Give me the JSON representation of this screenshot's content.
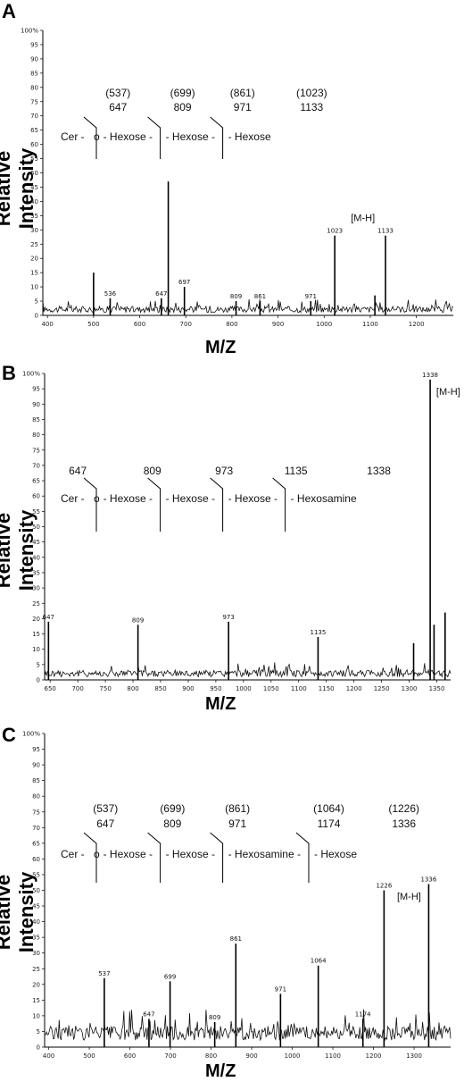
{
  "ylabel": "Relative Intensity",
  "xlabel": "M/Z",
  "chart_data": [
    {
      "panel": "A",
      "type": "line",
      "xlim": [
        390,
        1280
      ],
      "ylim": [
        0,
        100
      ],
      "x_ticks": [
        400,
        500,
        600,
        700,
        800,
        900,
        1000,
        1100,
        1200
      ],
      "y_ticks": [
        0,
        5,
        10,
        15,
        20,
        25,
        30,
        35,
        40,
        45,
        50,
        55,
        60,
        65,
        70,
        75,
        80,
        85,
        90,
        95,
        100
      ],
      "y_tick_labels": [
        "0",
        "5",
        "10",
        "15",
        "20",
        "25",
        "30",
        "35",
        "40",
        "45",
        "50",
        "55",
        "60",
        "65",
        "70",
        "75",
        "80",
        "85",
        "90",
        "95",
        "100%"
      ],
      "peaks": [
        {
          "x": 500,
          "y": 15,
          "label": ""
        },
        {
          "x": 536,
          "y": 6,
          "label": "536"
        },
        {
          "x": 647,
          "y": 6,
          "label": "647"
        },
        {
          "x": 662,
          "y": 47,
          "label": ""
        },
        {
          "x": 697,
          "y": 10,
          "label": "697"
        },
        {
          "x": 809,
          "y": 5,
          "label": "809"
        },
        {
          "x": 861,
          "y": 5,
          "label": "861"
        },
        {
          "x": 971,
          "y": 5,
          "label": "971"
        },
        {
          "x": 1023,
          "y": 28,
          "label": "1023"
        },
        {
          "x": 1110,
          "y": 7,
          "label": ""
        },
        {
          "x": 1133,
          "y": 28,
          "label": "1133"
        }
      ],
      "mh_label": "[M-H]",
      "mh_pos": {
        "x": 1058,
        "y": 33
      },
      "fragment_masses": [
        {
          "top": "(537)",
          "bottom": "647",
          "x": 553
        },
        {
          "top": "(699)",
          "bottom": "809",
          "x": 693
        },
        {
          "top": "(861)",
          "bottom": "971",
          "x": 823
        },
        {
          "top": "(1023)",
          "bottom": "1133",
          "x": 973
        }
      ],
      "structure": [
        "Cer -",
        "o",
        "- Hexose -",
        "- Hexose -",
        "- Hexose"
      ]
    },
    {
      "panel": "B",
      "type": "line",
      "xlim": [
        640,
        1375
      ],
      "ylim": [
        0,
        100
      ],
      "x_ticks": [
        650,
        700,
        750,
        800,
        850,
        900,
        950,
        1000,
        1050,
        1100,
        1150,
        1200,
        1250,
        1300,
        1350
      ],
      "y_ticks": [
        0,
        5,
        10,
        15,
        20,
        25,
        30,
        35,
        40,
        45,
        50,
        55,
        60,
        65,
        70,
        75,
        80,
        85,
        90,
        95,
        100
      ],
      "y_tick_labels": [
        "0",
        "5",
        "10",
        "15",
        "20",
        "25",
        "30",
        "35",
        "40",
        "45",
        "50",
        "55",
        "60",
        "65",
        "70",
        "75",
        "80",
        "85",
        "90",
        "95",
        "100%"
      ],
      "peaks": [
        {
          "x": 647,
          "y": 19,
          "label": "647"
        },
        {
          "x": 809,
          "y": 18,
          "label": "809"
        },
        {
          "x": 973,
          "y": 19,
          "label": "973"
        },
        {
          "x": 1135,
          "y": 14,
          "label": "1135"
        },
        {
          "x": 1308,
          "y": 12,
          "label": ""
        },
        {
          "x": 1338,
          "y": 98,
          "label": "1338"
        },
        {
          "x": 1345,
          "y": 18,
          "label": ""
        },
        {
          "x": 1365,
          "y": 22,
          "label": ""
        }
      ],
      "mh_label": "[M-H]",
      "mh_pos": {
        "x": 1349,
        "y": 93
      },
      "fragment_masses": [
        {
          "top": "",
          "bottom": "647",
          "x": 700
        },
        {
          "top": "",
          "bottom": "809",
          "x": 835
        },
        {
          "top": "",
          "bottom": "973",
          "x": 965
        },
        {
          "top": "",
          "bottom": "1135",
          "x": 1095
        },
        {
          "top": "",
          "bottom": "1338",
          "x": 1245
        }
      ],
      "structure": [
        "Cer -",
        "o",
        "- Hexose -",
        "- Hexose -",
        "- Hexose -",
        "- Hexosamine"
      ]
    },
    {
      "panel": "C",
      "type": "line",
      "xlim": [
        390,
        1390
      ],
      "ylim": [
        0,
        100
      ],
      "x_ticks": [
        400,
        500,
        600,
        700,
        800,
        900,
        1000,
        1100,
        1200,
        1300
      ],
      "y_ticks": [
        0,
        5,
        10,
        15,
        20,
        25,
        30,
        35,
        40,
        45,
        50,
        55,
        60,
        65,
        70,
        75,
        80,
        85,
        90,
        95,
        100
      ],
      "y_tick_labels": [
        "0",
        "5",
        "10",
        "15",
        "20",
        "25",
        "30",
        "35",
        "40",
        "45",
        "50",
        "55",
        "60",
        "65",
        "70",
        "75",
        "80",
        "85",
        "90",
        "95",
        "100%"
      ],
      "peaks": [
        {
          "x": 537,
          "y": 22,
          "label": "537"
        },
        {
          "x": 647,
          "y": 9,
          "label": "647"
        },
        {
          "x": 699,
          "y": 21,
          "label": "699"
        },
        {
          "x": 809,
          "y": 8,
          "label": "809"
        },
        {
          "x": 861,
          "y": 33,
          "label": "861"
        },
        {
          "x": 971,
          "y": 17,
          "label": "971"
        },
        {
          "x": 1064,
          "y": 26,
          "label": "1064"
        },
        {
          "x": 1174,
          "y": 9,
          "label": "1174"
        },
        {
          "x": 1226,
          "y": 50,
          "label": "1226"
        },
        {
          "x": 1336,
          "y": 52,
          "label": "1336"
        }
      ],
      "mh_label": "[M-H]",
      "mh_pos": {
        "x": 1258,
        "y": 47
      },
      "fragment_masses": [
        {
          "top": "(537)",
          "bottom": "647",
          "x": 540
        },
        {
          "top": "(699)",
          "bottom": "809",
          "x": 705
        },
        {
          "top": "(861)",
          "bottom": "971",
          "x": 865
        },
        {
          "top": "(1064)",
          "bottom": "1174",
          "x": 1090
        },
        {
          "top": "(1226)",
          "bottom": "1336",
          "x": 1275
        }
      ],
      "structure": [
        "Cer -",
        "o",
        "- Hexose -",
        "- Hexose -",
        "- Hexosamine -",
        "- Hexose"
      ]
    }
  ]
}
